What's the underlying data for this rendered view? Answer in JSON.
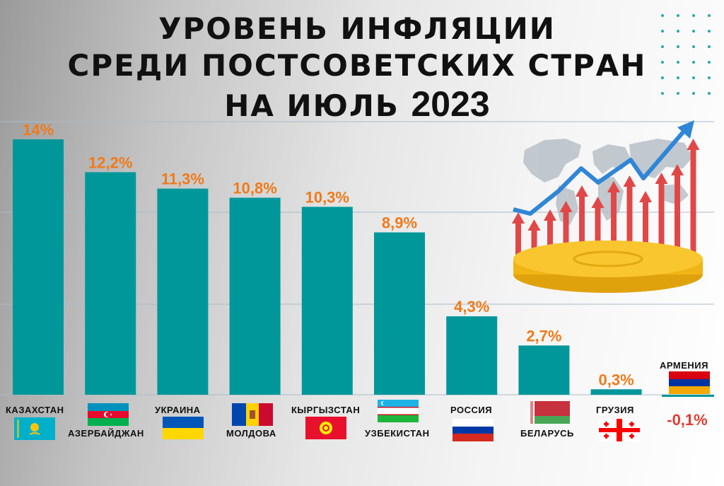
{
  "title": {
    "line1": "УРОВЕНЬ ИНФЛЯЦИИ",
    "line2": "СРЕДИ ПОСТСОВЕТСКИХ СТРАН",
    "line3_prefix": "НА ИЮЛЬ",
    "line3_year": "2023"
  },
  "colors": {
    "bar": "#00979b",
    "value_label": "#f07a1a",
    "negative_label": "#e03c31",
    "grid": "#a8bcc8",
    "arrow_red": "#e04848",
    "arrow_blue": "#2f86d6",
    "coin": "#f5b814"
  },
  "illustration": {
    "icons": [
      "world-map",
      "rising-arrows",
      "trend-arrow",
      "gold-coin"
    ]
  },
  "chart_data": {
    "type": "bar",
    "title": "",
    "xlabel": "",
    "ylabel": "",
    "ylim": [
      0,
      15
    ],
    "grid": true,
    "categories": [
      "КАЗАХСТАН",
      "АЗЕРБАЙДЖАН",
      "УКРАИНА",
      "МОЛДОВА",
      "КЫРГЫЗСТАН",
      "УЗБЕКИСТАН",
      "РОССИЯ",
      "БЕЛАРУСЬ",
      "ГРУЗИЯ",
      "АРМЕНИЯ"
    ],
    "values": [
      14.0,
      12.2,
      11.3,
      10.8,
      10.3,
      8.9,
      4.3,
      2.7,
      0.3,
      -0.1
    ],
    "value_labels": [
      "14%",
      "12,2%",
      "11,3%",
      "10,8%",
      "10,3%",
      "8,9%",
      "4,3%",
      "2,7%",
      "0,3%",
      "-0,1%"
    ],
    "flags": [
      "kazakhstan-flag",
      "azerbaijan-flag",
      "ukraine-flag",
      "moldova-flag",
      "kyrgyzstan-flag",
      "uzbekistan-flag",
      "russia-flag",
      "belarus-flag",
      "georgia-flag",
      "armenia-flag"
    ]
  }
}
